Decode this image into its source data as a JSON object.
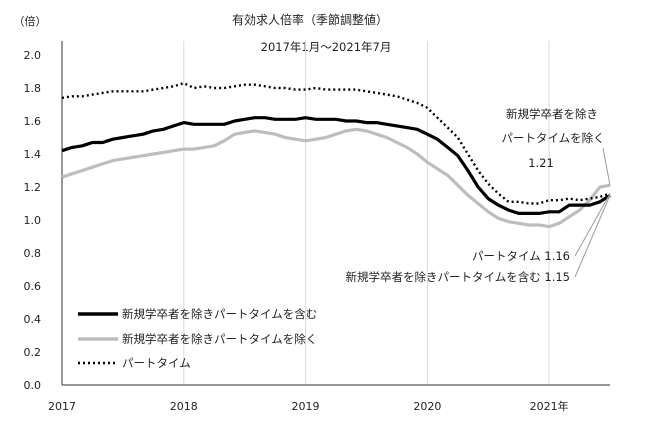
{
  "chart_data": {
    "type": "line",
    "title": "有効求人倍率（季節調整値）",
    "subtitle": "2017年1月～2021年7月",
    "ylabel": "（倍）",
    "ylim": [
      0.0,
      2.0
    ],
    "yticks": [
      "0.0",
      "0.2",
      "0.4",
      "0.6",
      "0.8",
      "1.0",
      "1.2",
      "1.4",
      "1.6",
      "1.8",
      "2.0"
    ],
    "xlim": [
      2017.0,
      2021.5
    ],
    "xticks": [
      {
        "x": 2017,
        "label": "2017"
      },
      {
        "x": 2018,
        "label": "2018"
      },
      {
        "x": 2019,
        "label": "2019"
      },
      {
        "x": 2020,
        "label": "2020"
      },
      {
        "x": 2021,
        "label": "2021年"
      }
    ],
    "grid": {
      "vertical": true,
      "horizontal": false
    },
    "legend_position": "bottom-left",
    "series": [
      {
        "name": "新規学卒者を除きパートタイムを含む",
        "color": "#000000",
        "style": "solid-thick",
        "x": [
          2017.0,
          2017.083,
          2017.167,
          2017.25,
          2017.333,
          2017.417,
          2017.5,
          2017.583,
          2017.667,
          2017.75,
          2017.833,
          2017.917,
          2018.0,
          2018.083,
          2018.167,
          2018.25,
          2018.333,
          2018.417,
          2018.5,
          2018.583,
          2018.667,
          2018.75,
          2018.833,
          2018.917,
          2019.0,
          2019.083,
          2019.167,
          2019.25,
          2019.333,
          2019.417,
          2019.5,
          2019.583,
          2019.667,
          2019.75,
          2019.833,
          2019.917,
          2020.0,
          2020.083,
          2020.167,
          2020.25,
          2020.333,
          2020.417,
          2020.5,
          2020.583,
          2020.667,
          2020.75,
          2020.833,
          2020.917,
          2021.0,
          2021.083,
          2021.167,
          2021.25,
          2021.333,
          2021.417,
          2021.5
        ],
        "values": [
          1.42,
          1.44,
          1.45,
          1.47,
          1.47,
          1.49,
          1.5,
          1.51,
          1.52,
          1.54,
          1.55,
          1.57,
          1.59,
          1.58,
          1.58,
          1.58,
          1.58,
          1.6,
          1.61,
          1.62,
          1.62,
          1.61,
          1.61,
          1.61,
          1.62,
          1.61,
          1.61,
          1.61,
          1.6,
          1.6,
          1.59,
          1.59,
          1.58,
          1.57,
          1.56,
          1.55,
          1.52,
          1.49,
          1.44,
          1.39,
          1.3,
          1.2,
          1.13,
          1.09,
          1.06,
          1.04,
          1.04,
          1.04,
          1.05,
          1.05,
          1.09,
          1.09,
          1.09,
          1.11,
          1.15
        ]
      },
      {
        "name": "新規学卒者を除きパートタイムを除く",
        "color": "#bdbdbd",
        "style": "solid-thick",
        "x": [
          2017.0,
          2017.083,
          2017.167,
          2017.25,
          2017.333,
          2017.417,
          2017.5,
          2017.583,
          2017.667,
          2017.75,
          2017.833,
          2017.917,
          2018.0,
          2018.083,
          2018.167,
          2018.25,
          2018.333,
          2018.417,
          2018.5,
          2018.583,
          2018.667,
          2018.75,
          2018.833,
          2018.917,
          2019.0,
          2019.083,
          2019.167,
          2019.25,
          2019.333,
          2019.417,
          2019.5,
          2019.583,
          2019.667,
          2019.75,
          2019.833,
          2019.917,
          2020.0,
          2020.083,
          2020.167,
          2020.25,
          2020.333,
          2020.417,
          2020.5,
          2020.583,
          2020.667,
          2020.75,
          2020.833,
          2020.917,
          2021.0,
          2021.083,
          2021.167,
          2021.25,
          2021.333,
          2021.417,
          2021.5
        ],
        "values": [
          1.26,
          1.28,
          1.3,
          1.32,
          1.34,
          1.36,
          1.37,
          1.38,
          1.39,
          1.4,
          1.41,
          1.42,
          1.43,
          1.43,
          1.44,
          1.45,
          1.48,
          1.52,
          1.53,
          1.54,
          1.53,
          1.52,
          1.5,
          1.49,
          1.48,
          1.49,
          1.5,
          1.52,
          1.54,
          1.55,
          1.54,
          1.52,
          1.5,
          1.47,
          1.44,
          1.4,
          1.35,
          1.31,
          1.27,
          1.21,
          1.15,
          1.1,
          1.05,
          1.01,
          0.99,
          0.98,
          0.97,
          0.97,
          0.96,
          0.98,
          1.02,
          1.06,
          1.12,
          1.2,
          1.21
        ]
      },
      {
        "name": "パートタイム",
        "color": "#000000",
        "style": "dotted",
        "x": [
          2017.0,
          2017.083,
          2017.167,
          2017.25,
          2017.333,
          2017.417,
          2017.5,
          2017.583,
          2017.667,
          2017.75,
          2017.833,
          2017.917,
          2018.0,
          2018.083,
          2018.167,
          2018.25,
          2018.333,
          2018.417,
          2018.5,
          2018.583,
          2018.667,
          2018.75,
          2018.833,
          2018.917,
          2019.0,
          2019.083,
          2019.167,
          2019.25,
          2019.333,
          2019.417,
          2019.5,
          2019.583,
          2019.667,
          2019.75,
          2019.833,
          2019.917,
          2020.0,
          2020.083,
          2020.167,
          2020.25,
          2020.333,
          2020.417,
          2020.5,
          2020.583,
          2020.667,
          2020.75,
          2020.833,
          2020.917,
          2021.0,
          2021.083,
          2021.167,
          2021.25,
          2021.333,
          2021.417,
          2021.5
        ],
        "values": [
          1.74,
          1.75,
          1.75,
          1.76,
          1.77,
          1.78,
          1.78,
          1.78,
          1.78,
          1.79,
          1.8,
          1.81,
          1.83,
          1.8,
          1.81,
          1.8,
          1.8,
          1.81,
          1.82,
          1.82,
          1.81,
          1.8,
          1.8,
          1.79,
          1.79,
          1.8,
          1.79,
          1.79,
          1.79,
          1.79,
          1.78,
          1.77,
          1.76,
          1.75,
          1.73,
          1.71,
          1.68,
          1.62,
          1.56,
          1.5,
          1.4,
          1.3,
          1.22,
          1.16,
          1.11,
          1.11,
          1.1,
          1.1,
          1.12,
          1.12,
          1.13,
          1.12,
          1.13,
          1.14,
          1.16
        ]
      }
    ],
    "annotations": [
      {
        "text": "新規学卒者を除き",
        "target_series": 1,
        "value": 1.21
      },
      {
        "text": "パートタイムを除く",
        "target_series": 1,
        "value": 1.21
      },
      {
        "text": "1.21",
        "target_series": 1,
        "value": 1.21
      },
      {
        "text": "パートタイム 1.16",
        "target_series": 2,
        "value": 1.16
      },
      {
        "text": "新規学卒者を除きパートタイムを含む 1.15",
        "target_series": 0,
        "value": 1.15
      }
    ]
  }
}
